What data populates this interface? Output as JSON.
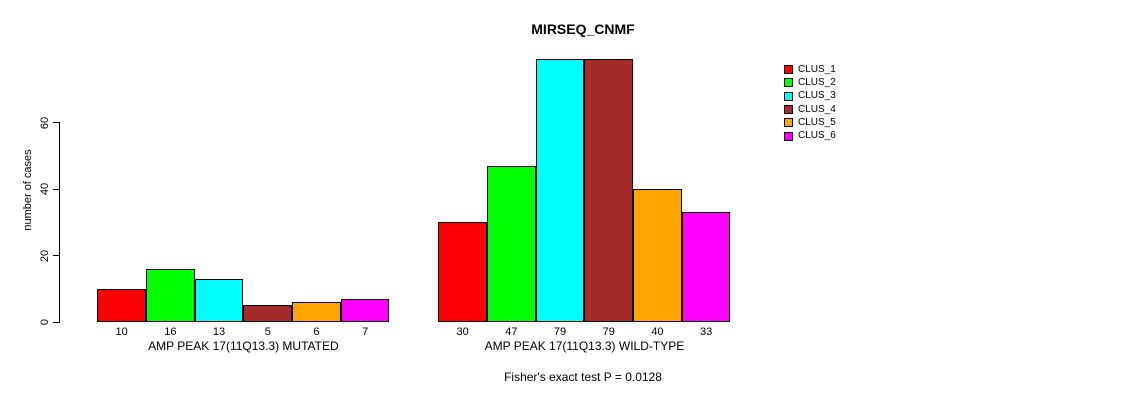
{
  "chart_data": {
    "type": "bar",
    "title": "MIRSEQ_CNMF",
    "ylabel": "number of cases",
    "xlabel": "",
    "yticks": [
      0,
      20,
      40,
      60
    ],
    "ylim": [
      0,
      80
    ],
    "grid": false,
    "legend_position": "right",
    "bar_value_labels_shown": true,
    "series_labels": [
      "CLUS_1",
      "CLUS_2",
      "CLUS_3",
      "CLUS_4",
      "CLUS_5",
      "CLUS_6"
    ],
    "groups": [
      {
        "label": "AMP PEAK 17(11Q13.3) MUTATED",
        "values": [
          10,
          16,
          13,
          5,
          6,
          7
        ]
      },
      {
        "label": "AMP PEAK 17(11Q13.3) WILD-TYPE",
        "values": [
          30,
          47,
          79,
          79,
          40,
          33
        ]
      }
    ],
    "annotation": "Fisher's exact test P = 0.0128"
  },
  "legend": {
    "items": [
      {
        "label": "CLUS_1",
        "color": "#ff0000"
      },
      {
        "label": "CLUS_2",
        "color": "#00ff00"
      },
      {
        "label": "CLUS_3",
        "color": "#00ffff"
      },
      {
        "label": "CLUS_4",
        "color": "#a52a2a"
      },
      {
        "label": "CLUS_5",
        "color": "#ffa500"
      },
      {
        "label": "CLUS_6",
        "color": "#ff00ff"
      }
    ]
  },
  "colors": {
    "axis": "#000000",
    "background": "#ffffff",
    "text": "#000000"
  }
}
